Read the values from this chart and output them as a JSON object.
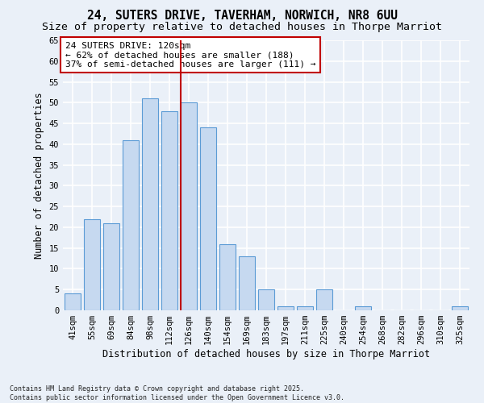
{
  "title_line1": "24, SUTERS DRIVE, TAVERHAM, NORWICH, NR8 6UU",
  "title_line2": "Size of property relative to detached houses in Thorpe Marriot",
  "xlabel": "Distribution of detached houses by size in Thorpe Marriot",
  "ylabel": "Number of detached properties",
  "categories": [
    "41sqm",
    "55sqm",
    "69sqm",
    "84sqm",
    "98sqm",
    "112sqm",
    "126sqm",
    "140sqm",
    "154sqm",
    "169sqm",
    "183sqm",
    "197sqm",
    "211sqm",
    "225sqm",
    "240sqm",
    "254sqm",
    "268sqm",
    "282sqm",
    "296sqm",
    "310sqm",
    "325sqm"
  ],
  "values": [
    4,
    22,
    21,
    41,
    51,
    48,
    50,
    44,
    16,
    13,
    5,
    1,
    1,
    5,
    0,
    1,
    0,
    0,
    0,
    0,
    1
  ],
  "bar_color": "#c6d9f0",
  "bar_edge_color": "#5b9bd5",
  "vline_color": "#c00000",
  "vline_bar_index": 6,
  "annotation_text": "24 SUTERS DRIVE: 120sqm\n← 62% of detached houses are smaller (188)\n37% of semi-detached houses are larger (111) →",
  "annotation_box_facecolor": "#ffffff",
  "annotation_box_edgecolor": "#c00000",
  "ylim_max": 65,
  "yticks": [
    0,
    5,
    10,
    15,
    20,
    25,
    30,
    35,
    40,
    45,
    50,
    55,
    60,
    65
  ],
  "footer_text": "Contains HM Land Registry data © Crown copyright and database right 2025.\nContains public sector information licensed under the Open Government Licence v3.0.",
  "bg_color": "#eaf0f8",
  "grid_color": "#ffffff",
  "title1_fontsize": 10.5,
  "title2_fontsize": 9.5,
  "axis_label_fontsize": 8.5,
  "tick_fontsize": 7.5,
  "annotation_fontsize": 8,
  "footer_fontsize": 6
}
